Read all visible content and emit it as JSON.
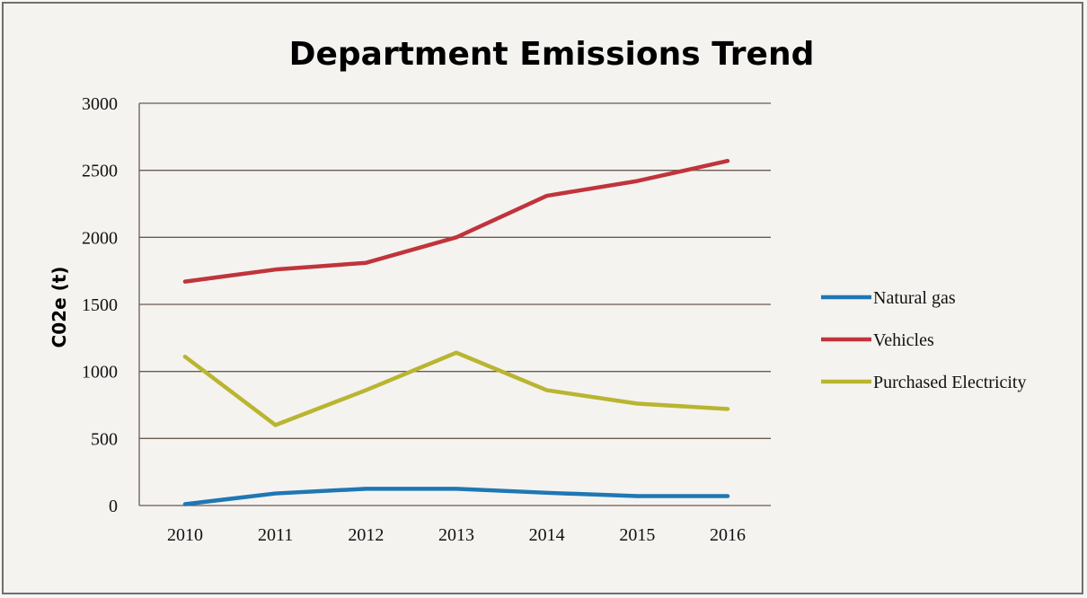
{
  "chart_data": {
    "type": "line",
    "title": "Department Emissions Trend",
    "xlabel": "",
    "ylabel": "C02e (t)",
    "categories": [
      "2010",
      "2011",
      "2012",
      "2013",
      "2014",
      "2015",
      "2016"
    ],
    "ylim": [
      0,
      3000
    ],
    "yticks": [
      0,
      500,
      1000,
      1500,
      2000,
      2500,
      3000
    ],
    "grid": "horizontal",
    "legend_position": "right",
    "series": [
      {
        "name": "Natural gas",
        "color": "#1f77b4",
        "values": [
          10,
          90,
          125,
          125,
          95,
          70,
          70
        ]
      },
      {
        "name": "Vehicles",
        "color": "#c0343c",
        "values": [
          1670,
          1760,
          1810,
          2000,
          2310,
          2420,
          2570
        ]
      },
      {
        "name": "Purchased Electricity",
        "color": "#b9b530",
        "values": [
          1110,
          600,
          860,
          1140,
          860,
          760,
          720
        ]
      }
    ]
  }
}
